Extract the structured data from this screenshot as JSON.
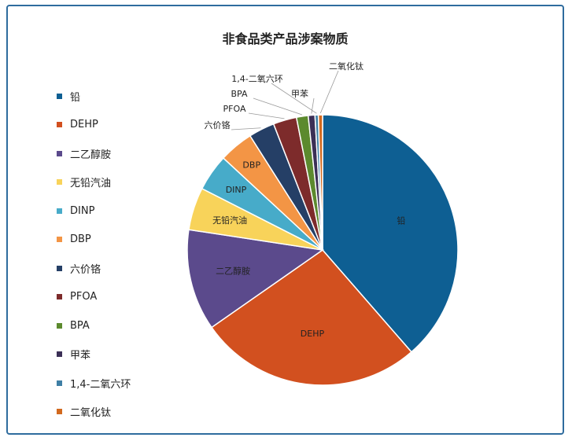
{
  "chart_data": {
    "type": "pie",
    "title": "非食品类产品涉案物质",
    "categories": [
      "铅",
      "DEHP",
      "二乙醇胺",
      "无铅汽油",
      "DINP",
      "DBP",
      "六价铬",
      "PFOA",
      "BPA",
      "甲苯",
      "1,4-二氧六环",
      "二氧化钛"
    ],
    "values": [
      38.6,
      26.7,
      12.1,
      5.1,
      4.4,
      4.1,
      3.1,
      2.8,
      1.4,
      0.8,
      0.4,
      0.5
    ],
    "colors": [
      "#0e5f93",
      "#d2501f",
      "#5b4a8c",
      "#f8d35a",
      "#47abc9",
      "#f39545",
      "#253f66",
      "#7d2b2b",
      "#5c8a2e",
      "#3b2f56",
      "#3f7fa5",
      "#d2691e"
    ],
    "slice_labels": [
      "铅",
      "DEHP",
      "二乙醇胺",
      "无铅汽油",
      "DINP",
      "DBP",
      "六价铬",
      "PFOA",
      "BPA",
      "甲苯",
      "1,4-二氧六环",
      "二氧化钛"
    ],
    "legend_position": "left"
  }
}
